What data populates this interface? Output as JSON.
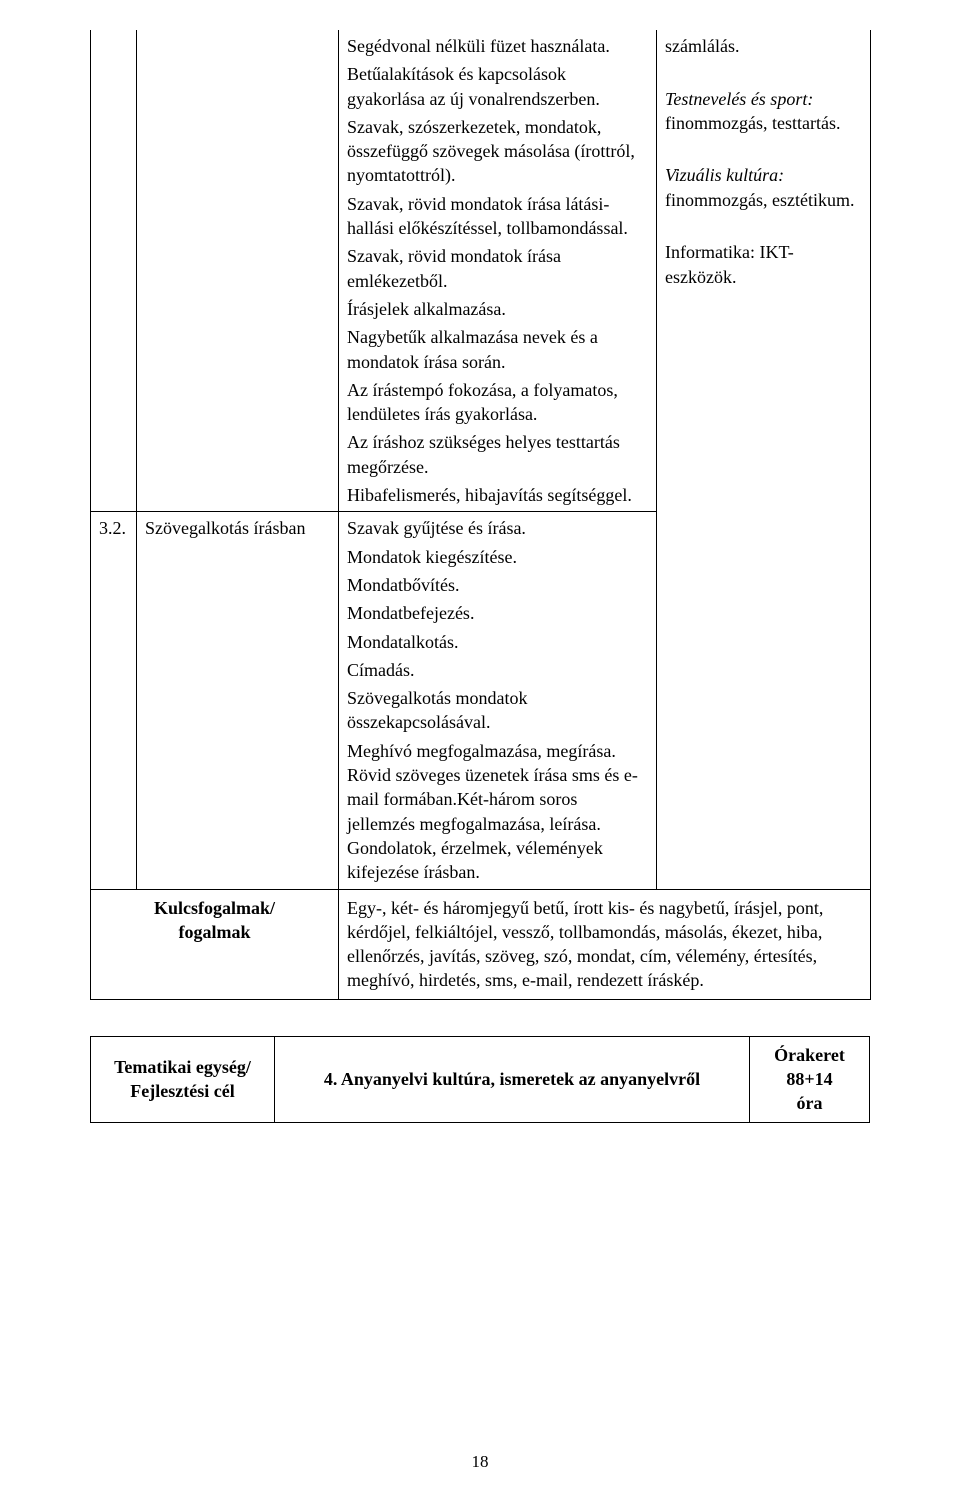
{
  "row1": {
    "col1_blank": "",
    "col2_blank": "",
    "desc": {
      "p1": "Segédvonal nélküli füzet használata.",
      "p2": "Betűalakítások és kapcsolások gyakorlása az új vonalrendszerben.",
      "p3": "Szavak, szószerkezetek, mondatok, összefüggő szövegek másolása (írottról, nyomtatottról).",
      "p4": "Szavak, rövid mondatok írása látási-hallási előkészítéssel, tollbamondással.",
      "p5": "Szavak, rövid mondatok írása emlékezetből.",
      "p6": "Írásjelek alkalmazása.",
      "p7": "Nagybetűk alkalmazása nevek és a mondatok írása során.",
      "p8": "Az írástempó fokozása, a folyamatos, lendületes írás gyakorlása.",
      "p9": "Az íráshoz szükséges helyes testtartás megőrzése.",
      "p10": "Hibafelismerés, hibajavítás segítséggel."
    },
    "right_top": "számlálás."
  },
  "row2": {
    "num": "3.2.",
    "topic": "Szövegalkotás írásban",
    "desc": {
      "p1": "Szavak gyűjtése és írása.",
      "p2": "Mondatok kiegészítése.",
      "p3": "Mondatbővítés.",
      "p4": "Mondatbefejezés.",
      "p5": "Mondatalkotás.",
      "p6": "Címadás.",
      "p7": "Szövegalkotás mondatok összekapcsolásával.",
      "p8": "Meghívó megfogalmazása, megírása. Rövid szöveges üzenetek írása sms és e-mail formában.Két-három soros jellemzés megfogalmazása, leírása. Gondolatok, érzelmek, vélemények kifejezése írásban."
    }
  },
  "right_panel": {
    "test_label": "Testnevelés és sport:",
    "test_text": " finommozgás, testtartás.",
    "viz_label": "Vizuális kultúra:",
    "viz_text": " finommozgás, esztétikum.",
    "info_text": "Informatika: IKT-eszközök."
  },
  "kulcs": {
    "label_line1": "Kulcsfogalmak/",
    "label_line2": "fogalmak",
    "text": "Egy-, két- és háromjegyű betű, írott kis- és nagybetű, írásjel, pont, kérdőjel, felkiáltójel, vessző, tollbamondás, másolás, ékezet, hiba, ellenőrzés, javítás, szöveg, szó, mondat, cím, vélemény, értesítés, meghívó, hirdetés, sms, e-mail, rendezett íráskép."
  },
  "unit": {
    "label_line1": "Tematikai egység/",
    "label_line2": "Fejlesztési cél",
    "title": "4.   Anyanyelvi kultúra, ismeretek az anyanyelvről",
    "hours_line1": "Órakeret",
    "hours_line2": "88+14",
    "hours_line3": "óra"
  },
  "page_number": "18"
}
